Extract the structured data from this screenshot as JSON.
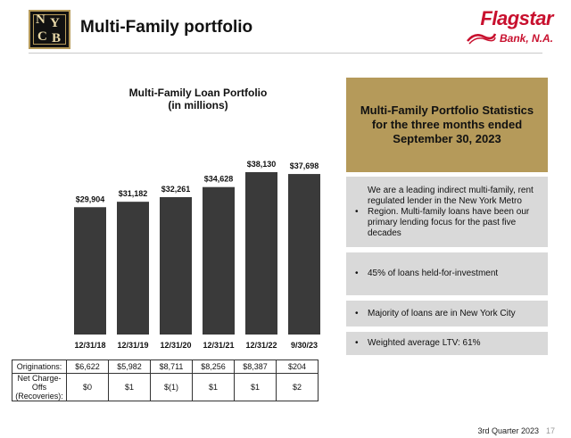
{
  "header": {
    "title": "Multi-Family portfolio",
    "logo_left_letters": [
      "N",
      "Y",
      "C",
      "B"
    ],
    "logo_right_name": "Flagstar",
    "logo_right_sub": "Bank, N.A."
  },
  "chart_data": {
    "type": "bar",
    "title": "Multi-Family Loan Portfolio",
    "subtitle": "(in millions)",
    "categories": [
      "12/31/18",
      "12/31/19",
      "12/31/20",
      "12/31/21",
      "12/31/22",
      "9/30/23"
    ],
    "values": [
      29904,
      31182,
      32261,
      34628,
      38130,
      37698
    ],
    "value_labels": [
      "$29,904",
      "$31,182",
      "$32,261",
      "$34,628",
      "$38,130",
      "$37,698"
    ],
    "xlabel": "",
    "ylabel": "",
    "ylim": [
      0,
      38130
    ],
    "grid": false,
    "bar_color": "#3a3a3a"
  },
  "table": {
    "rows": [
      {
        "label": "Originations:",
        "values": [
          "$6,622",
          "$5,982",
          "$8,711",
          "$8,256",
          "$8,387",
          "$204"
        ]
      },
      {
        "label": "Net Charge-Offs (Recoveries):",
        "values": [
          "$0",
          "$1",
          "$(1)",
          "$1",
          "$1",
          "$2"
        ]
      }
    ]
  },
  "stats": {
    "header": "Multi-Family Portfolio Statistics\nfor the three months ended\nSeptember 30, 2023",
    "bullet_glyph": "•",
    "items": [
      "We are a leading indirect multi-family, rent regulated lender in the New York Metro Region. Multi-family loans have been our primary lending focus for the past five decades",
      "45% of loans held-for-investment",
      "Majority of loans are in New York City",
      "Weighted average LTV: 61%"
    ]
  },
  "footer": {
    "text": "3rd Quarter 2023",
    "page": "17"
  },
  "colors": {
    "gold": "#b59a5a",
    "gray_box": "#d9d9d9",
    "flagstar_red": "#c8102e",
    "bar": "#3a3a3a"
  }
}
